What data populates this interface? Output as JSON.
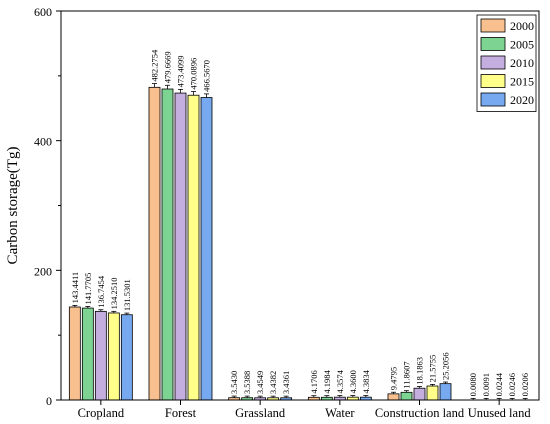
{
  "chart_data": {
    "type": "bar",
    "title": "",
    "xlabel": "",
    "ylabel": "Carbon storage(Tg)",
    "ylim": [
      0,
      600
    ],
    "yticks": [
      0,
      200,
      400,
      600
    ],
    "grid": false,
    "legend_position": "top-right",
    "categories": [
      "Cropland",
      "Forest",
      "Grassland",
      "Water",
      "Construction land",
      "Unused land"
    ],
    "series": [
      {
        "name": "2000",
        "color": "#f9c08f",
        "values": [
          143.4411,
          482.2754,
          3.543,
          4.1706,
          9.4795,
          0.008
        ],
        "labels": [
          "143.4411",
          "482.2754",
          "3.5430",
          "4.1706",
          "9.4795",
          "0.0080"
        ]
      },
      {
        "name": "2005",
        "color": "#7dd492",
        "values": [
          141.7705,
          479.6669,
          3.5388,
          4.1984,
          11.8607,
          0.0091
        ],
        "labels": [
          "141.7705",
          "479.6669",
          "3.5388",
          "4.1984",
          "11.8607",
          "0.0091"
        ]
      },
      {
        "name": "2010",
        "color": "#c4aee0",
        "values": [
          136.7454,
          473.4099,
          3.4549,
          4.3574,
          18.1863,
          0.0244
        ],
        "labels": [
          "136.7454",
          "473.4099",
          "3.4549",
          "4.3574",
          "18.1863",
          "0.0244"
        ]
      },
      {
        "name": "2015",
        "color": "#ffff8a",
        "values": [
          134.251,
          470.0896,
          3.4382,
          4.36,
          21.5755,
          0.0246
        ],
        "labels": [
          "134.2510",
          "470.0896",
          "3.4382",
          "4.3600",
          "21.5755",
          "0.0246"
        ]
      },
      {
        "name": "2020",
        "color": "#76a9f0",
        "values": [
          131.5301,
          466.567,
          3.4361,
          4.3834,
          25.2056,
          0.0206
        ],
        "labels": [
          "131.5301",
          "466.5670",
          "3.4361",
          "4.3834",
          "25.2056",
          "0.0206"
        ]
      }
    ]
  }
}
